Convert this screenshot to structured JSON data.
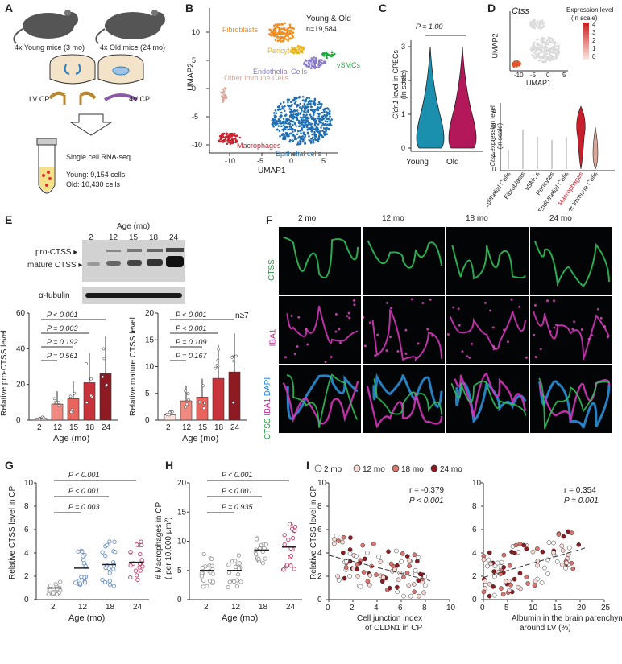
{
  "panel_labels": {
    "A": "A",
    "B": "B",
    "C": "C",
    "D": "D",
    "E": "E",
    "F": "F",
    "G": "G",
    "H": "H",
    "I": "I"
  },
  "panel_a": {
    "young": "4x Young mice (3 mo)",
    "old": "4x Old mice (24 mo)",
    "lv": "LV CP",
    "v4": "4V CP",
    "seq": "Single cell RNA-seq",
    "young_cells": "Young: 9,154 cells",
    "old_cells": "Old: 10,430 cells"
  },
  "panel_b": {
    "title": "Young & Old",
    "n": "n=19,584",
    "xlabel": "UMAP1",
    "ylabel": "UMAP2",
    "clusters": [
      {
        "name": "Fibroblasts",
        "color": "#f28c1e"
      },
      {
        "name": "Pericytes",
        "color": "#e8b41a"
      },
      {
        "name": "vSMCs",
        "color": "#1faa3c"
      },
      {
        "name": "Endothelial Cells",
        "color": "#8a7cc8"
      },
      {
        "name": "Other Immune Cells",
        "color": "#d8a79a"
      },
      {
        "name": "Macrophages",
        "color": "#c8202c"
      },
      {
        "name": "Epithelial cells",
        "color": "#1f6fb5"
      }
    ],
    "xticks": [
      "-10",
      "-5",
      "0",
      "5"
    ],
    "yticks": [
      "-10",
      "-5",
      "0",
      "5",
      "10"
    ]
  },
  "panel_c": {
    "pval": "P = 1.00",
    "ylabel_gene": "Cldn1",
    "ylabel_rest": " level in CPECs",
    "ylabel2": "(ln scale)",
    "groups": [
      "Young",
      "Old"
    ],
    "colors": [
      "#1a8fae",
      "#b3185a"
    ],
    "yticks": [
      "0",
      "1",
      "2",
      "3"
    ]
  },
  "panel_d": {
    "gene": "Ctss",
    "legend_title": "Expression level",
    "legend_sub": "(ln scale)",
    "legend_ticks": [
      "4",
      "3",
      "2",
      "1",
      "0"
    ],
    "xlabel": "UMAP1",
    "ylabel": "UMAP2",
    "xticks": [
      "-10",
      "-5",
      "0",
      "5"
    ],
    "violin_ylabel_gene": "Ctss",
    "violin_ylabel_rest": " expression level",
    "violin_ylabel2": "(ln scale)",
    "violin_yticks": [
      "0",
      "1",
      "2",
      "3",
      "4"
    ],
    "cell_types": [
      "Epithelial Cells",
      "Fibroblasts",
      "vSMCs",
      "Pericytes",
      "Endothelial Cells",
      "Macrophages",
      "Other Immune Cells"
    ]
  },
  "panel_e": {
    "age_title": "Age (mo)",
    "ages": [
      "2",
      "12",
      "15",
      "18",
      "24"
    ],
    "pro": "pro-CTSS",
    "mature": "mature CTSS",
    "tubulin": "α-tubulin",
    "n_note": "n≥7",
    "left": {
      "ylabel": "Relative pro-CTSS level",
      "xlabel": "Age (mo)",
      "yticks": [
        "0",
        "20",
        "40",
        "60"
      ],
      "pvals": [
        "P < 0.001",
        "P = 0.003",
        "P = 0.192",
        "P = 0.561"
      ]
    },
    "right": {
      "ylabel": "Relative mature CTSS level",
      "xlabel": "Age (mo)",
      "yticks": [
        "0",
        "5",
        "10",
        "15",
        "20"
      ],
      "pvals": [
        "P < 0.001",
        "P < 0.001",
        "P = 0.109",
        "P = 0.167"
      ]
    },
    "bar_colors": [
      "#fbe0dc",
      "#f08a80",
      "#e8645c",
      "#c8323a",
      "#8e1a24"
    ]
  },
  "panel_f": {
    "ages": [
      "2 mo",
      "12 mo",
      "18 mo",
      "24 mo"
    ],
    "row1": "CTSS",
    "row2": "IBA1",
    "row3_a": "CTSS",
    "row3_b": "IBA1",
    "row3_c": "DAPI"
  },
  "chart_data": [
    {
      "type": "scatter",
      "panel": "G",
      "ylabel": "Relative CTSS level in CP",
      "xlabel": "Age (mo)",
      "categories": [
        "2",
        "12",
        "18",
        "24"
      ],
      "means": [
        1.0,
        2.7,
        3.0,
        3.2
      ],
      "ylim": [
        0,
        10
      ],
      "yticks": [
        "0",
        "2",
        "4",
        "6",
        "8",
        "10"
      ],
      "pvals": [
        "P < 0.001",
        "P < 0.001",
        "P = 0.003"
      ]
    },
    {
      "type": "scatter",
      "panel": "H",
      "ylabel": "# Macrophages in CP",
      "ylabel2": "( per 10,000 μm²)",
      "xlabel": "Age (mo)",
      "categories": [
        "2",
        "12",
        "18",
        "24"
      ],
      "means": [
        5.0,
        5.0,
        8.5,
        9.0
      ],
      "ylim": [
        0,
        20
      ],
      "yticks": [
        "0",
        "5",
        "10",
        "15",
        "20"
      ],
      "pvals": [
        "P < 0.001",
        "P < 0.001",
        "P = 0.935"
      ]
    },
    {
      "type": "scatter",
      "panel": "I-left",
      "ylabel": "Relative CTSS level in CP",
      "xlabel": "Cell junction index",
      "xlabel2": "of CLDN1 in CP",
      "r": "r = -0.379",
      "p": "P < 0.001",
      "xlim": [
        0,
        10
      ],
      "ylim": [
        0,
        10
      ],
      "xticks": [
        "0",
        "2",
        "4",
        "6",
        "8",
        "10"
      ],
      "yticks": [
        "0",
        "2",
        "4",
        "6",
        "8",
        "10"
      ]
    },
    {
      "type": "scatter",
      "panel": "I-right",
      "xlabel": "Albumin in the brain parenchyma",
      "xlabel2": "around LV (%)",
      "r": "r = 0.354",
      "p": "P = 0.001",
      "xlim": [
        0,
        25
      ],
      "ylim": [
        0,
        10
      ],
      "xticks": [
        "0",
        "5",
        "10",
        "15",
        "20",
        "25"
      ],
      "yticks": [
        "0",
        "2",
        "4",
        "6",
        "8",
        "10"
      ]
    }
  ],
  "panel_i_legend": {
    "items": [
      {
        "label": "2 mo",
        "color": "#ffffff"
      },
      {
        "label": "12 mo",
        "color": "#f7d9d6"
      },
      {
        "label": "18 mo",
        "color": "#d9756f"
      },
      {
        "label": "24 mo",
        "color": "#8c1a22"
      }
    ]
  }
}
